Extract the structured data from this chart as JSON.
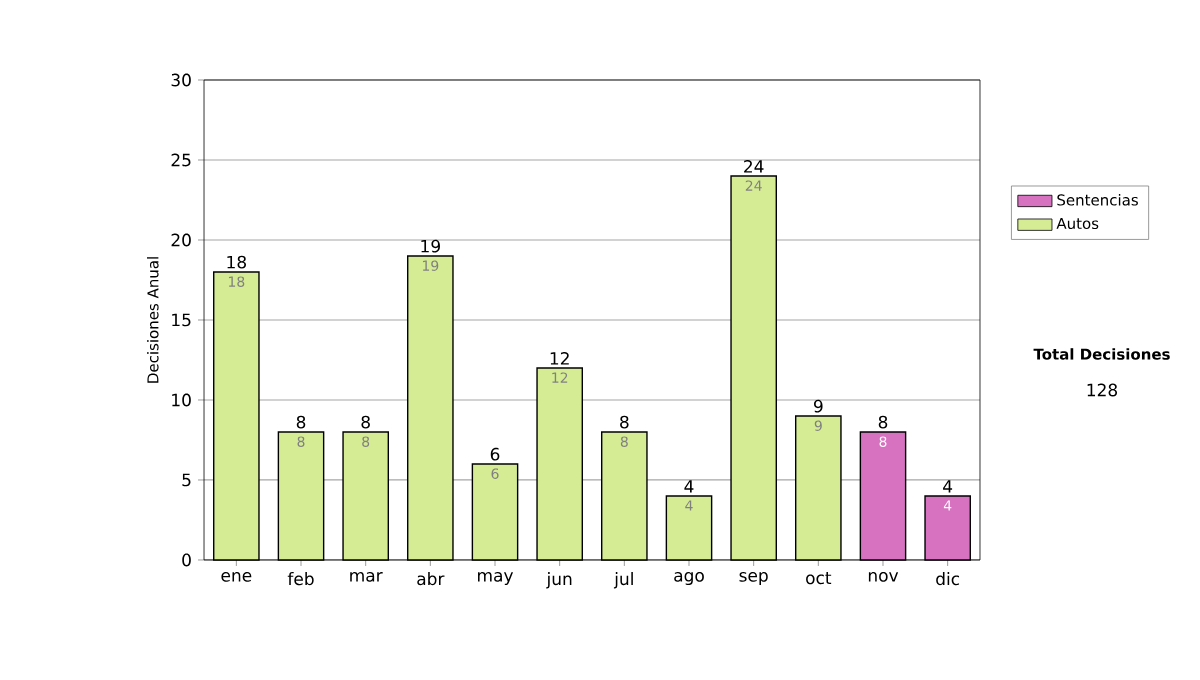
{
  "chart_data": {
    "type": "bar",
    "stacked": true,
    "ylabel": "Decisiones Anual",
    "categories": [
      "ene",
      "feb",
      "mar",
      "abr",
      "may",
      "jun",
      "jul",
      "ago",
      "sep",
      "oct",
      "nov",
      "dic"
    ],
    "series": [
      {
        "name": "Autos",
        "color": "#d5ec94",
        "values": [
          18,
          8,
          8,
          19,
          6,
          12,
          8,
          4,
          24,
          9,
          null,
          null
        ]
      },
      {
        "name": "Sentencias",
        "color": "#d672c0",
        "values": [
          null,
          null,
          null,
          null,
          null,
          null,
          null,
          null,
          null,
          null,
          8,
          4
        ]
      }
    ],
    "totals": [
      "18",
      "8",
      "8",
      "19",
      "6",
      "12",
      "8",
      "4",
      "24",
      "9",
      "8",
      "4"
    ],
    "data_labels": true,
    "ylim": [
      0,
      30
    ],
    "yticks": [
      0,
      5,
      10,
      15,
      20,
      25,
      30
    ],
    "grid": "y",
    "legend": "right",
    "annotations": [
      "Total Decisiones",
      "128"
    ]
  }
}
